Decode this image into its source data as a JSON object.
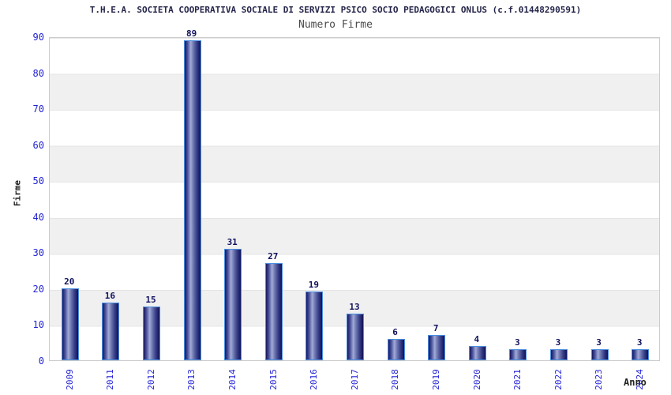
{
  "header": {
    "title": "T.H.E.A. SOCIETA COOPERATIVA SOCIALE DI SERVIZI PSICO SOCIO PEDAGOGICI ONLUS (c.f.01448290591)",
    "subtitle": "Numero Firme"
  },
  "chart_data": {
    "type": "bar",
    "title": "Numero Firme",
    "categories": [
      "2009",
      "2011",
      "2012",
      "2013",
      "2014",
      "2015",
      "2016",
      "2017",
      "2018",
      "2019",
      "2020",
      "2021",
      "2022",
      "2023",
      "2024"
    ],
    "values": [
      20,
      16,
      15,
      89,
      31,
      27,
      19,
      13,
      6,
      7,
      4,
      3,
      3,
      3,
      3
    ],
    "xlabel": "Anno",
    "ylabel": "Firme",
    "ylim": [
      0,
      90
    ],
    "yticks": [
      0,
      10,
      20,
      30,
      40,
      50,
      60,
      70,
      80,
      90
    ],
    "grid": "horizontal-bands-alternating",
    "legend": "none",
    "bar_value_labels": true,
    "x_tick_rotation_deg": 90
  },
  "colors": {
    "title": "#24244a",
    "subtitle": "#4a4a4a",
    "tick_label": "#2323d7",
    "value_label": "#10105e",
    "axis_label": "#222222",
    "bar_dark": "#17175f",
    "bar_mid": "#4a529c",
    "bar_light": "#a2abd6",
    "bar_border": "#4a8fe0",
    "band_gray": "#f0f0f0",
    "band_white": "#ffffff",
    "plot_border": "#cccccc"
  }
}
